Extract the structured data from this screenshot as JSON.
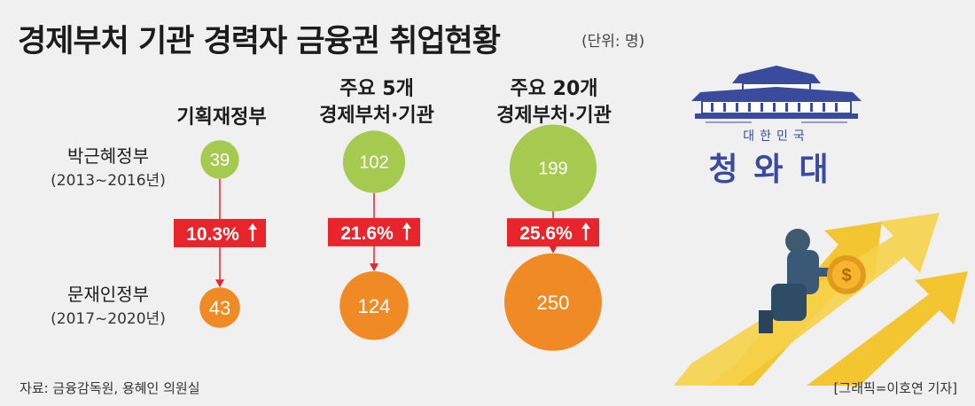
{
  "title": "경제부처 기관 경력자 금융권 취업현황",
  "unit": "(단위: 명)",
  "chart_data": {
    "type": "bubble-comparison",
    "categories": [
      "기획재정부",
      "주요 5개\n경제부처·기관",
      "주요 20개\n경제부처·기관"
    ],
    "series": [
      {
        "name": "박근혜정부",
        "period": "(2013~2016년)",
        "values": [
          39,
          102,
          199
        ],
        "color": "#a6c94f"
      },
      {
        "name": "문재인정부",
        "period": "(2017~2020년)",
        "values": [
          43,
          124,
          250
        ],
        "color": "#f08a24"
      }
    ],
    "growth_labels": [
      "10.3%",
      "21.6%",
      "25.6%"
    ],
    "growth_color": "#e8252c"
  },
  "logo": {
    "country": "대한민국",
    "name": "청와대"
  },
  "footer": {
    "source": "자료: 금융감독원, 용혜인 의원실",
    "credit": "[그래픽=이호연 기자]"
  }
}
